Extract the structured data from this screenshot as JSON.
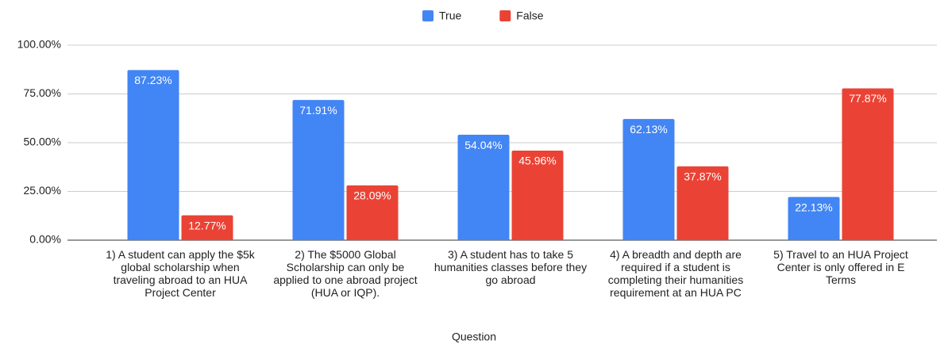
{
  "chart_data": {
    "type": "bar",
    "x_label": "Question",
    "categories": [
      "1) A student can apply the $5k global scholarship when traveling abroad to an HUA Project Center",
      "2) The $5000 Global Scholarship can only be applied to one abroad project (HUA or IQP).",
      "3) A student has to take 5 humanities classes before they go abroad",
      "4) A breadth and depth are required if a student is completing their humanities requirement at an HUA PC",
      "5) Travel to an HUA Project Center is only offered in E Terms"
    ],
    "series": [
      {
        "name": "True",
        "color": "#4285f4",
        "values": [
          87.23,
          71.91,
          54.04,
          62.13,
          22.13
        ],
        "value_labels": [
          "87.23%",
          "71.91%",
          "54.04%",
          "62.13%",
          "22.13%"
        ]
      },
      {
        "name": "False",
        "color": "#ea4335",
        "values": [
          12.77,
          28.09,
          45.96,
          37.87,
          77.87
        ],
        "value_labels": [
          "12.77%",
          "28.09%",
          "45.96%",
          "37.87%",
          "77.87%"
        ]
      }
    ],
    "ylim": [
      0,
      100
    ],
    "yticks": [
      {
        "value": 0,
        "label": "0.00%"
      },
      {
        "value": 25,
        "label": "25.00%"
      },
      {
        "value": 50,
        "label": "50.00%"
      },
      {
        "value": 75,
        "label": "75.00%"
      },
      {
        "value": 100,
        "label": "100.00%"
      }
    ],
    "grid": true,
    "legend": "top"
  }
}
